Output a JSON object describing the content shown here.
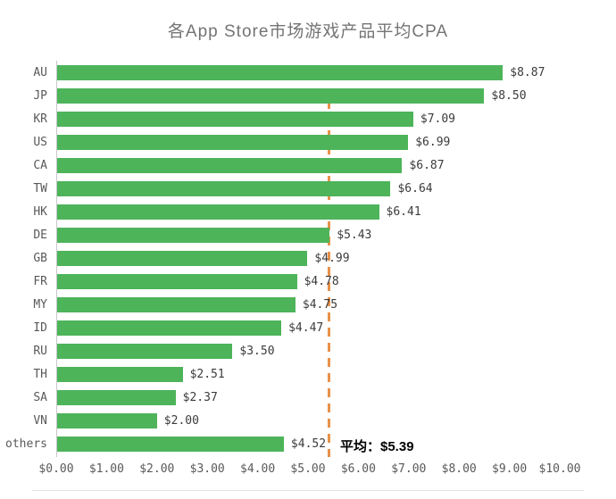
{
  "title": "各App Store市场游戏产品平均CPA",
  "chart_data": {
    "type": "bar",
    "orientation": "horizontal",
    "title": "各App Store市场游戏产品平均CPA",
    "categories": [
      "AU",
      "JP",
      "KR",
      "US",
      "CA",
      "TW",
      "HK",
      "DE",
      "GB",
      "FR",
      "MY",
      "ID",
      "RU",
      "TH",
      "SA",
      "VN",
      "others"
    ],
    "values": [
      8.87,
      8.5,
      7.09,
      6.99,
      6.87,
      6.64,
      6.41,
      5.43,
      4.99,
      4.78,
      4.75,
      4.47,
      3.5,
      2.51,
      2.37,
      2.0,
      4.52
    ],
    "value_labels": [
      "$8.87",
      "$8.50",
      "$7.09",
      "$6.99",
      "$6.87",
      "$6.64",
      "$6.41",
      "$5.43",
      "$4.99",
      "$4.78",
      "$4.75",
      "$4.47",
      "$3.50",
      "$2.51",
      "$2.37",
      "$2.00",
      "$4.52"
    ],
    "x_ticks": [
      "$0.00",
      "$1.00",
      "$2.00",
      "$3.00",
      "$4.00",
      "$5.00",
      "$6.00",
      "$7.00",
      "$8.00",
      "$9.00",
      "$10.00"
    ],
    "xlim": [
      0,
      10
    ],
    "average": 5.39,
    "average_label": "平均：$5.39",
    "bar_color": "#4db45a",
    "average_line_color": "#e8914a",
    "grid": false,
    "legend": false
  }
}
